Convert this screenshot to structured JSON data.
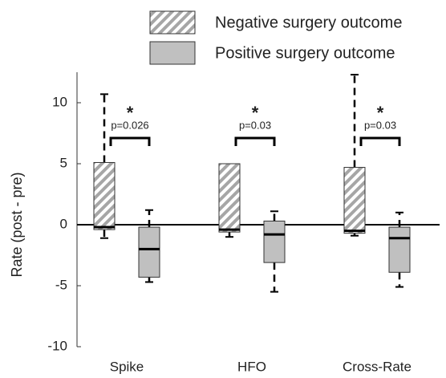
{
  "chart_data": {
    "type": "box",
    "y_label": "Rate (post - pre)",
    "categories": [
      "Spike",
      "HFO",
      "Cross-Rate"
    ],
    "ylim": [
      -10,
      12.5
    ],
    "yticks": [
      -10,
      -5,
      0,
      5,
      10
    ],
    "series": [
      {
        "name": "Negative surgery outcome",
        "color": "#a6a6a6",
        "pattern": "hatch",
        "whisker_low": [
          -1.1,
          -1.0,
          -0.9
        ],
        "q1": [
          -0.4,
          -0.6,
          -0.7
        ],
        "median": [
          -0.2,
          -0.4,
          -0.5
        ],
        "q3": [
          5.1,
          5.0,
          4.7
        ],
        "whisker_high": [
          10.7,
          null,
          12.3
        ]
      },
      {
        "name": "Positive surgery outcome",
        "color": "#c0c0c0",
        "pattern": "solid",
        "whisker_low": [
          -4.7,
          -5.5,
          -5.1
        ],
        "q1": [
          -4.3,
          -3.1,
          -3.9
        ],
        "median": [
          -2.0,
          -0.8,
          -1.1
        ],
        "q3": [
          -0.2,
          0.3,
          -0.2
        ],
        "whisker_high": [
          1.2,
          1.1,
          1.0
        ]
      }
    ],
    "annotations": [
      {
        "star": "*",
        "text": "p=0.026"
      },
      {
        "star": "*",
        "text": "p=0.03"
      },
      {
        "star": "*",
        "text": "p=0.03"
      }
    ]
  }
}
